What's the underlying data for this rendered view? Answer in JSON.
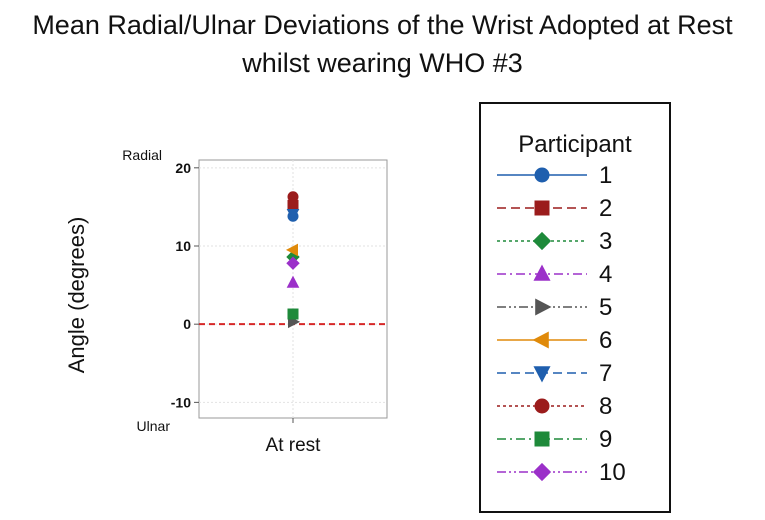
{
  "chart_data": {
    "type": "scatter",
    "title_line1": "Mean Radial/Ulnar Deviations of the Wrist Adopted at Rest",
    "title_line2": "whilst wearing WHO #3",
    "ylabel": "Angle (degrees)",
    "categories": [
      "At rest"
    ],
    "ylim": [
      -12,
      21
    ],
    "yticks": [
      20,
      10,
      0,
      -10
    ],
    "top_side_label": "Radial",
    "bottom_side_label": "Ulnar",
    "reference_line": {
      "y": 0,
      "color": "#d62728",
      "style": "dashed"
    },
    "grid": true,
    "legend": {
      "title": "Participant",
      "placement": "right"
    },
    "series": [
      {
        "name": "1",
        "values": [
          13.8
        ],
        "color": "#1f5fae",
        "marker": "circle",
        "dash": "solid"
      },
      {
        "name": "2",
        "values": [
          15.2
        ],
        "color": "#9b1c1c",
        "marker": "square",
        "dash": "dashed"
      },
      {
        "name": "3",
        "values": [
          8.6
        ],
        "color": "#1e8a3a",
        "marker": "diamond",
        "dash": "dotted"
      },
      {
        "name": "4",
        "values": [
          5.3
        ],
        "color": "#9b30c9",
        "marker": "triangle-up",
        "dash": "dashdot"
      },
      {
        "name": "5",
        "values": [
          0.3
        ],
        "color": "#555555",
        "marker": "triangle-right",
        "dash": "dashdotdot"
      },
      {
        "name": "6",
        "values": [
          9.5
        ],
        "color": "#e08a0a",
        "marker": "triangle-left",
        "dash": "solid"
      },
      {
        "name": "7",
        "values": [
          14.1
        ],
        "color": "#1f5fae",
        "marker": "triangle-down",
        "dash": "dashed"
      },
      {
        "name": "8",
        "values": [
          16.3
        ],
        "color": "#9b1c1c",
        "marker": "circle",
        "dash": "dotted"
      },
      {
        "name": "9",
        "values": [
          1.3
        ],
        "color": "#1e8a3a",
        "marker": "square",
        "dash": "dashdot"
      },
      {
        "name": "10",
        "values": [
          7.8
        ],
        "color": "#9b30c9",
        "marker": "diamond",
        "dash": "dashdotdot"
      }
    ]
  }
}
